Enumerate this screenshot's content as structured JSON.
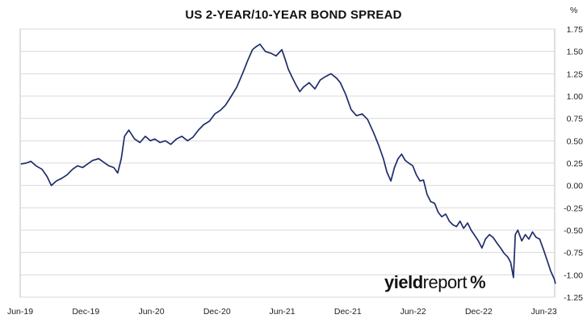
{
  "chart_data": {
    "type": "line",
    "title": "US 2-YEAR/10-YEAR BOND SPREAD",
    "unit": "%",
    "xlabel": "",
    "ylabel": "",
    "ylim": [
      -1.25,
      1.75
    ],
    "y_ticks": [
      "1.75",
      "1.50",
      "1.25",
      "1.00",
      "0.75",
      "0.50",
      "0.25",
      "0.00",
      "-0.25",
      "-0.50",
      "-0.75",
      "-1.00",
      "-1.25"
    ],
    "x_ticks": [
      "Jun-19",
      "Dec-19",
      "Jun-20",
      "Dec-20",
      "Jun-21",
      "Dec-21",
      "Jun-22",
      "Dec-22",
      "Jun-23"
    ],
    "xlim": [
      "2019-06-01",
      "2023-07-01"
    ],
    "grid": "horizontal",
    "line_color": "#1f2d6b",
    "series": [
      {
        "name": "",
        "x": [
          "2019-06-03",
          "2019-06-17",
          "2019-07-01",
          "2019-07-15",
          "2019-08-01",
          "2019-08-15",
          "2019-08-27",
          "2019-09-10",
          "2019-09-25",
          "2019-10-10",
          "2019-10-25",
          "2019-11-08",
          "2019-11-22",
          "2019-12-06",
          "2019-12-20",
          "2020-01-06",
          "2020-01-20",
          "2020-02-03",
          "2020-02-17",
          "2020-02-28",
          "2020-03-09",
          "2020-03-18",
          "2020-03-30",
          "2020-04-15",
          "2020-04-30",
          "2020-05-15",
          "2020-05-29",
          "2020-06-10",
          "2020-06-25",
          "2020-07-10",
          "2020-07-25",
          "2020-08-10",
          "2020-08-25",
          "2020-09-10",
          "2020-09-25",
          "2020-10-10",
          "2020-10-25",
          "2020-11-10",
          "2020-11-25",
          "2020-12-10",
          "2020-12-25",
          "2021-01-10",
          "2021-01-25",
          "2021-02-10",
          "2021-02-25",
          "2021-03-10",
          "2021-03-19",
          "2021-03-31",
          "2021-04-15",
          "2021-04-30",
          "2021-05-15",
          "2021-05-31",
          "2021-06-10",
          "2021-06-18",
          "2021-06-30",
          "2021-07-10",
          "2021-07-20",
          "2021-07-30",
          "2021-08-15",
          "2021-08-31",
          "2021-09-15",
          "2021-09-30",
          "2021-10-15",
          "2021-10-31",
          "2021-11-10",
          "2021-11-25",
          "2021-12-10",
          "2021-12-25",
          "2022-01-10",
          "2022-01-25",
          "2022-02-10",
          "2022-02-25",
          "2022-03-10",
          "2022-03-20",
          "2022-03-31",
          "2022-04-10",
          "2022-04-20",
          "2022-04-30",
          "2022-05-10",
          "2022-05-20",
          "2022-05-31",
          "2022-06-10",
          "2022-06-20",
          "2022-06-30",
          "2022-07-10",
          "2022-07-20",
          "2022-07-31",
          "2022-08-10",
          "2022-08-20",
          "2022-08-31",
          "2022-09-10",
          "2022-09-20",
          "2022-09-30",
          "2022-10-10",
          "2022-10-20",
          "2022-10-31",
          "2022-11-10",
          "2022-11-20",
          "2022-11-30",
          "2022-12-10",
          "2022-12-20",
          "2022-12-31",
          "2023-01-10",
          "2023-01-20",
          "2023-01-31",
          "2023-02-10",
          "2023-02-20",
          "2023-02-28",
          "2023-03-08",
          "2023-03-13",
          "2023-03-20",
          "2023-03-31",
          "2023-04-10",
          "2023-04-20",
          "2023-04-30",
          "2023-05-10",
          "2023-05-20",
          "2023-05-31",
          "2023-06-10",
          "2023-06-20",
          "2023-06-30",
          "2023-07-03"
        ],
        "y": [
          0.24,
          0.25,
          0.27,
          0.22,
          0.18,
          0.1,
          0.0,
          0.05,
          0.08,
          0.12,
          0.18,
          0.22,
          0.2,
          0.24,
          0.28,
          0.3,
          0.26,
          0.22,
          0.2,
          0.14,
          0.3,
          0.55,
          0.62,
          0.52,
          0.48,
          0.55,
          0.5,
          0.52,
          0.48,
          0.5,
          0.46,
          0.52,
          0.55,
          0.5,
          0.54,
          0.62,
          0.68,
          0.72,
          0.8,
          0.84,
          0.9,
          1.0,
          1.1,
          1.25,
          1.4,
          1.52,
          1.55,
          1.58,
          1.5,
          1.48,
          1.45,
          1.52,
          1.4,
          1.3,
          1.2,
          1.12,
          1.05,
          1.1,
          1.15,
          1.08,
          1.18,
          1.22,
          1.25,
          1.2,
          1.15,
          1.02,
          0.85,
          0.78,
          0.8,
          0.74,
          0.6,
          0.45,
          0.3,
          0.15,
          0.05,
          0.2,
          0.3,
          0.35,
          0.28,
          0.25,
          0.22,
          0.12,
          0.05,
          0.06,
          -0.1,
          -0.18,
          -0.2,
          -0.3,
          -0.35,
          -0.32,
          -0.4,
          -0.44,
          -0.46,
          -0.4,
          -0.48,
          -0.42,
          -0.5,
          -0.56,
          -0.62,
          -0.7,
          -0.6,
          -0.55,
          -0.58,
          -0.64,
          -0.7,
          -0.76,
          -0.8,
          -0.86,
          -1.03,
          -0.55,
          -0.5,
          -0.62,
          -0.55,
          -0.6,
          -0.52,
          -0.58,
          -0.6,
          -0.72,
          -0.84,
          -0.96,
          -1.05,
          -1.1
        ]
      }
    ]
  },
  "watermark": {
    "part1": "yield",
    "part2": "report",
    "part3": "%"
  }
}
